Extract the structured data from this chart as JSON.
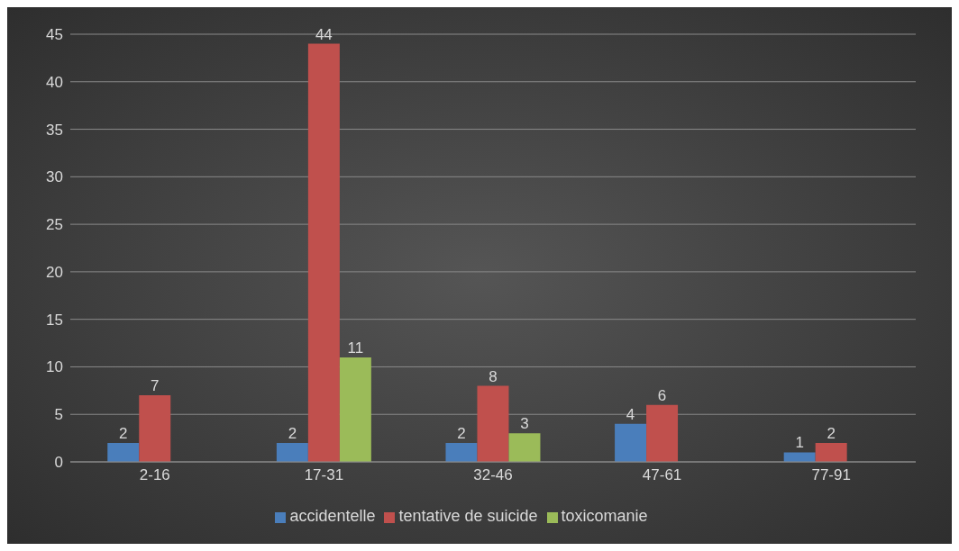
{
  "chart_data": {
    "type": "bar",
    "categories": [
      "2-16",
      "17-31",
      "32-46",
      "47-61",
      "77-91"
    ],
    "series": [
      {
        "name": "accidentelle",
        "color": "#4a7ebb",
        "values": [
          2,
          2,
          2,
          4,
          1
        ]
      },
      {
        "name": "tentative de suicide",
        "color": "#c0504d",
        "values": [
          7,
          44,
          8,
          6,
          2
        ]
      },
      {
        "name": "toxicomanie",
        "color": "#9bbb59",
        "values": [
          null,
          11,
          3,
          null,
          null
        ]
      }
    ],
    "ylim": [
      0,
      45
    ],
    "yticks": [
      0,
      5,
      10,
      15,
      20,
      25,
      30,
      35,
      40,
      45
    ],
    "grid": "y",
    "legend": "bottom",
    "data_labels": true
  }
}
